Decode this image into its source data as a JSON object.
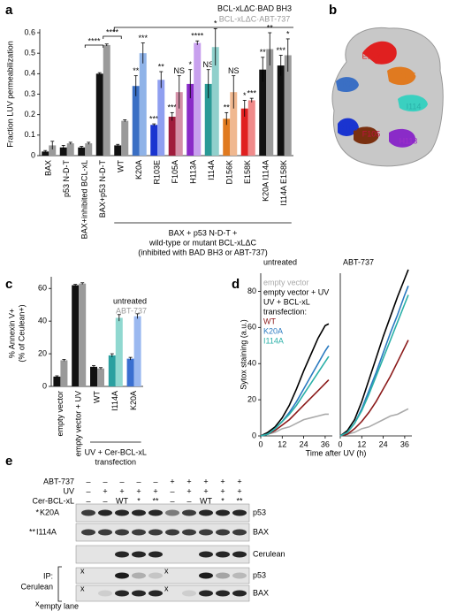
{
  "panels": [
    "a",
    "b",
    "c",
    "d",
    "e"
  ],
  "chart_data": [
    {
      "type": "bar",
      "y_label": [
        "Fraction LUV permeabilization"
      ],
      "categories": [
        "BAX",
        "p53 N-D-T",
        "BAX+inhibited BCL-xL",
        "BAX+p53 N-D-T",
        "WT",
        "K20A",
        "R103E",
        "F105A",
        "H113A",
        "I114A",
        "D156K",
        "E158K",
        "K20A I114A",
        "I114A E158K"
      ],
      "series": [
        {
          "name": "BCL-xLΔC·BAD BH3",
          "color": "#000000",
          "colors": [
            "#111111",
            "#111111",
            "#111111",
            "#111111",
            "#111111",
            "#3a6fc4",
            "#1a34d0",
            "#a01c3c",
            "#8a2bc8",
            "#2a9a96",
            "#e07a20",
            "#e02020",
            "#111111",
            "#111111"
          ],
          "values": [
            0.02,
            0.04,
            0.04,
            0.4,
            0.05,
            0.34,
            0.15,
            0.19,
            0.35,
            0.35,
            0.18,
            0.23,
            0.42,
            0.44
          ],
          "errors": [
            0.005,
            0.01,
            0.005,
            0.005,
            0.005,
            0.05,
            0.005,
            0.02,
            0.07,
            0.07,
            0.03,
            0.04,
            0.06,
            0.05
          ],
          "significance": [
            null,
            null,
            null,
            null,
            null,
            "**",
            "***",
            "***",
            "*",
            "NS",
            "**",
            "*",
            "**",
            "***"
          ]
        },
        {
          "name": "BCL-xLΔC·ABT-737",
          "color": "#999999",
          "colors": [
            "#9a9a9a",
            "#9a9a9a",
            "#9a9a9a",
            "#9a9a9a",
            "#9a9a9a",
            "#8fb3e8",
            "#8f9ff0",
            "#d490a8",
            "#c8a0ee",
            "#90d0cc",
            "#f0b890",
            "#f08a8a",
            "#9a9a9a",
            "#9a9a9a"
          ],
          "values": [
            0.05,
            0.06,
            0.06,
            0.54,
            0.17,
            0.5,
            0.37,
            0.31,
            0.55,
            0.53,
            0.31,
            0.27,
            0.52,
            0.49
          ],
          "errors": [
            0.02,
            0.005,
            0.005,
            0.005,
            0.005,
            0.05,
            0.04,
            0.08,
            0.01,
            0.09,
            0.08,
            0.01,
            0.08,
            0.08
          ],
          "significance": [
            null,
            null,
            null,
            null,
            null,
            "***",
            "**",
            "NS",
            "****",
            "*",
            "NS",
            "***",
            "**",
            "*"
          ]
        }
      ],
      "ylim": [
        0,
        0.6
      ],
      "yticks": [
        0,
        0.1,
        0.2,
        0.3,
        0.4,
        0.5,
        0.6
      ],
      "comparisons": [
        "****",
        "****"
      ],
      "group_label": [
        "BAX + p53 N-D-T +",
        "wild-type or mutant BCL-xLΔC",
        "(inhibited with BAD BH3 or ABT-737)"
      ]
    },
    {
      "type": "bar",
      "y_label": [
        "% Annexin V+",
        "(% of Ceulean+)"
      ],
      "categories": [
        "empty vector",
        "empty vector + UV",
        "WT",
        "I114A",
        "K20A"
      ],
      "series": [
        {
          "name": "untreated",
          "color": "#000000",
          "colors": [
            "#111111",
            "#111111",
            "#111111",
            "#2aa0a0",
            "#3a6fd0"
          ],
          "values": [
            6,
            62,
            12,
            19,
            17
          ],
          "errors": [
            0.5,
            0.5,
            0.8,
            1,
            0.8
          ],
          "significance": [
            null,
            null,
            null,
            null,
            null
          ]
        },
        {
          "name": "ABT-737",
          "color": "#999999",
          "colors": [
            "#9a9a9a",
            "#9a9a9a",
            "#9a9a9a",
            "#90d8d0",
            "#9ab8f0"
          ],
          "values": [
            16,
            63,
            11,
            42,
            43
          ],
          "errors": [
            0.5,
            0.5,
            0.5,
            2,
            1.5
          ],
          "significance": [
            null,
            null,
            null,
            null,
            null
          ]
        }
      ],
      "ylim": [
        0,
        65
      ],
      "yticks": [
        0,
        20,
        40,
        60
      ],
      "comparisons": [],
      "group_label": [
        "UV + Cer-BCL-xL",
        "transfection"
      ]
    },
    {
      "type": "line",
      "y_label": "Sytox staining (a.u.)",
      "x_label": "Time after UV (h)",
      "x": [
        0,
        4,
        8,
        12,
        16,
        20,
        24,
        28,
        32,
        36,
        38
      ],
      "xlim": [
        0,
        40
      ],
      "xticks": [
        0,
        12,
        24,
        36
      ],
      "ylim": [
        0,
        90
      ],
      "yticks": [
        0,
        20,
        40,
        60,
        80
      ],
      "legend_title": [
        "UV + BCL-xL",
        "transfection:"
      ],
      "series": [
        {
          "name": "empty vector",
          "color": "#aaaaaa"
        },
        {
          "name": "empty vector + UV",
          "color": "#000000"
        },
        {
          "name": "WT",
          "color": "#8b1a1a"
        },
        {
          "name": "K20A",
          "color": "#2a7ac0"
        },
        {
          "name": "I114A",
          "color": "#2ab0a8"
        }
      ],
      "subplots": [
        {
          "title": "untreated",
          "series": [
            {
              "values": [
                0,
                1,
                2,
                4,
                5,
                7,
                9,
                10,
                11,
                12,
                12
              ]
            },
            {
              "values": [
                0,
                2,
                5,
                10,
                17,
                26,
                36,
                45,
                54,
                61,
                62
              ]
            },
            {
              "values": [
                0,
                1,
                3,
                6,
                9,
                13,
                17,
                21,
                25,
                29,
                31
              ]
            },
            {
              "values": [
                0,
                1,
                4,
                8,
                13,
                19,
                26,
                33,
                40,
                47,
                50
              ]
            },
            {
              "values": [
                0,
                1,
                4,
                8,
                12,
                17,
                23,
                29,
                35,
                41,
                44
              ]
            }
          ]
        },
        {
          "title": "ABT-737",
          "series": [
            {
              "values": [
                0,
                1,
                2,
                4,
                5,
                7,
                9,
                11,
                12,
                14,
                15
              ]
            },
            {
              "values": [
                0,
                3,
                9,
                19,
                31,
                43,
                55,
                66,
                77,
                87,
                92
              ]
            },
            {
              "values": [
                0,
                1,
                4,
                8,
                13,
                19,
                26,
                33,
                41,
                49,
                53
              ]
            },
            {
              "values": [
                0,
                2,
                7,
                15,
                25,
                35,
                46,
                57,
                67,
                78,
                83
              ]
            },
            {
              "values": [
                0,
                2,
                7,
                14,
                23,
                33,
                43,
                53,
                63,
                73,
                78
              ]
            }
          ]
        }
      ]
    }
  ],
  "structure": {
    "labels": [
      {
        "text": "E158",
        "color": "#e02020"
      },
      {
        "text": "D156",
        "color": "#e07a20"
      },
      {
        "text": "K20",
        "color": "#3a6fc4"
      },
      {
        "text": "I114",
        "color": "#2ab0a8"
      },
      {
        "text": "R103",
        "color": "#1a34d0"
      },
      {
        "text": "F105",
        "color": "#c01040"
      },
      {
        "text": "H113",
        "color": "#a030c8"
      }
    ]
  },
  "blot": {
    "rows": [
      {
        "label": "ABT-737",
        "values": [
          "–",
          "–",
          "–",
          "–",
          "–",
          "+",
          "+",
          "+",
          "+",
          "+"
        ]
      },
      {
        "label": "UV",
        "values": [
          "–",
          "+",
          "+",
          "+",
          "+",
          "–",
          "+",
          "+",
          "+",
          "+"
        ]
      },
      {
        "label": "Cer-BCL-xL",
        "values": [
          "–",
          "–",
          "WT",
          "*",
          "**",
          "–",
          "–",
          "WT",
          "*",
          "**"
        ]
      }
    ],
    "bands": [
      "p53",
      "BAX",
      "Cerulean",
      "p53",
      "BAX"
    ],
    "mutant_key": [
      {
        "mark": "*",
        "label": "K20A"
      },
      {
        "mark": "**",
        "label": "I114A"
      }
    ],
    "ip_label": [
      "IP:",
      "Cerulean"
    ],
    "empty_mark": "x",
    "empty_note": "empty lane"
  }
}
